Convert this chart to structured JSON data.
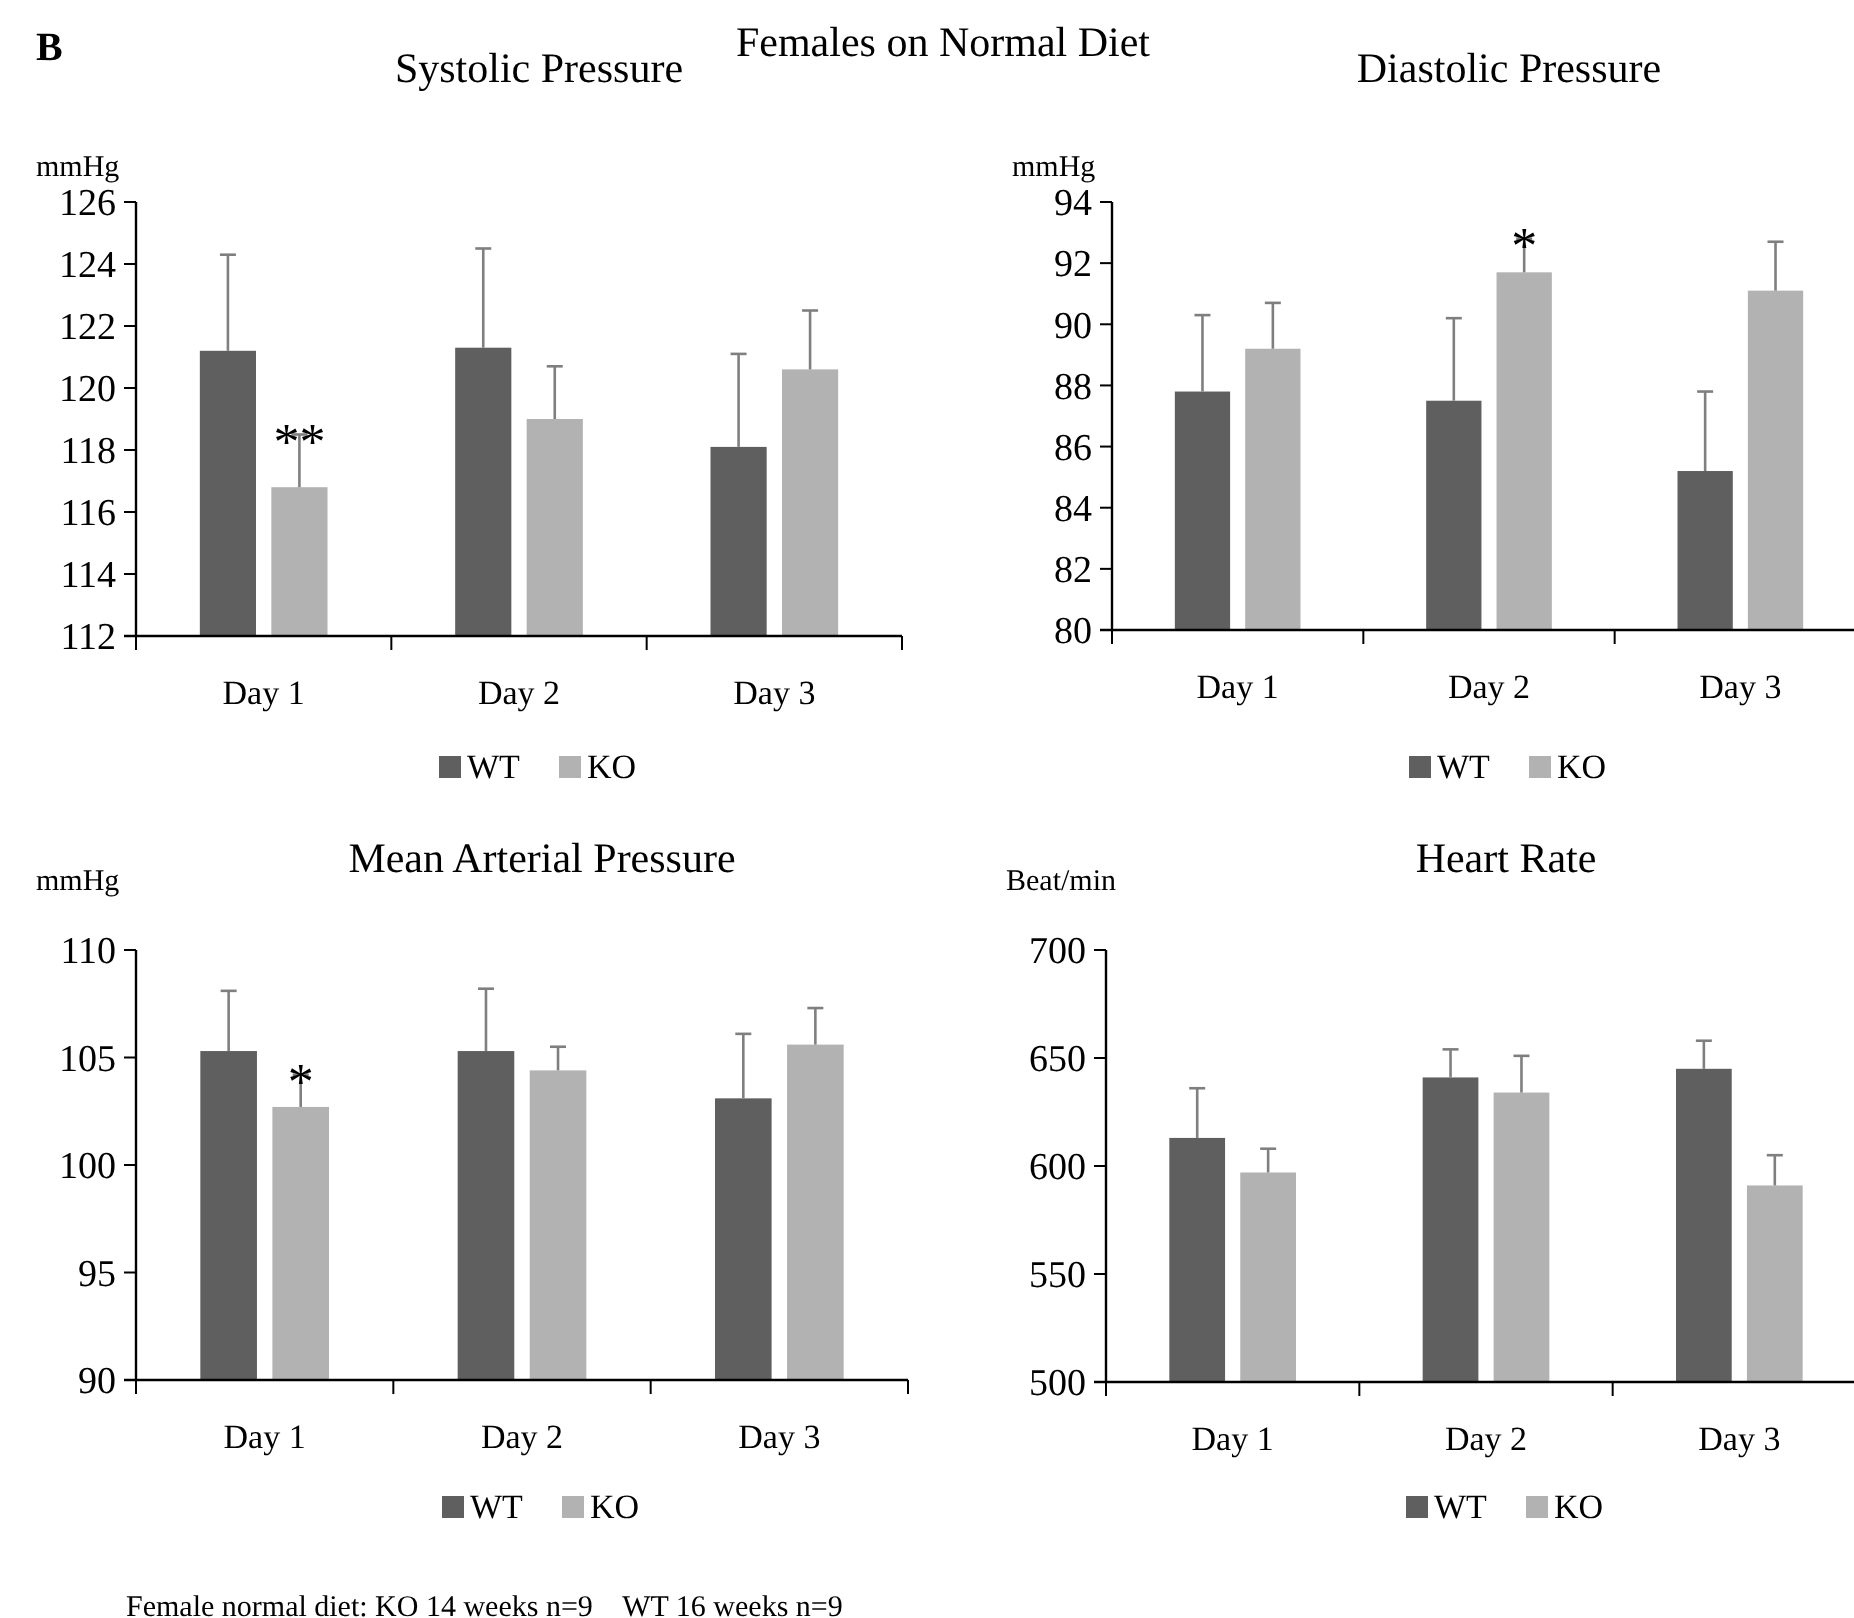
{
  "chart_data": [
    {
      "type": "bar",
      "title": "Systolic Pressure",
      "ylabel": "mmHg",
      "categories": [
        "Day 1",
        "Day 2",
        "Day 3"
      ],
      "legend": "bottom",
      "ylim": [
        112,
        126
      ],
      "yticks": [
        112,
        114,
        116,
        118,
        120,
        122,
        124,
        126
      ],
      "series": [
        {
          "name": "WT",
          "color": "#5f5f5f",
          "values": [
            121.2,
            121.3,
            118.1
          ],
          "errors": [
            [
              121.2,
              124.3
            ],
            [
              121.3,
              124.5
            ],
            [
              118.1,
              121.1
            ]
          ]
        },
        {
          "name": "KO",
          "color": "#b2b2b2",
          "values": [
            116.8,
            119.0,
            120.6
          ],
          "errors": [
            [
              116.8,
              118.5
            ],
            [
              119.0,
              120.7
            ],
            [
              120.6,
              122.5
            ]
          ]
        }
      ],
      "annotations": [
        "B",
        "Females on Normal Diet",
        {
          "text": "**",
          "x": "Day 1",
          "y": 116.8
        }
      ]
    },
    {
      "type": "bar",
      "title": "Diastolic Pressure",
      "ylabel": "mmHg",
      "categories": [
        "Day 1",
        "Day 2",
        "Day 3"
      ],
      "legend": "bottom",
      "ylim": [
        80,
        94
      ],
      "yticks": [
        80,
        82,
        84,
        86,
        88,
        90,
        92,
        94
      ],
      "series": [
        {
          "name": "WT",
          "color": "#5f5f5f",
          "values": [
            87.8,
            87.5,
            85.2
          ],
          "errors": [
            [
              87.8,
              90.3
            ],
            [
              87.5,
              90.2
            ],
            [
              85.2,
              87.8
            ]
          ]
        },
        {
          "name": "KO",
          "color": "#b2b2b2",
          "values": [
            89.2,
            91.7,
            91.1
          ],
          "errors": [
            [
              89.2,
              90.7
            ],
            [
              91.7,
              92.8
            ],
            [
              91.1,
              92.7
            ]
          ]
        }
      ],
      "annotations": [
        {
          "text": "*",
          "x": "Day 2",
          "y": 91.7
        }
      ]
    },
    {
      "type": "bar",
      "title": "Mean Arterial Pressure",
      "ylabel": "mmHg",
      "categories": [
        "Day 1",
        "Day 2",
        "Day 3"
      ],
      "legend": "bottom",
      "ylim": [
        90,
        110
      ],
      "yticks": [
        90,
        95,
        100,
        105,
        110
      ],
      "series": [
        {
          "name": "WT",
          "color": "#5f5f5f",
          "values": [
            105.3,
            105.3,
            103.1
          ],
          "errors": [
            [
              105.3,
              108.1
            ],
            [
              105.3,
              108.2
            ],
            [
              103.1,
              106.1
            ]
          ]
        },
        {
          "name": "KO",
          "color": "#b2b2b2",
          "values": [
            102.7,
            104.4,
            105.6
          ],
          "errors": [
            [
              102.7,
              104.2
            ],
            [
              104.4,
              105.5
            ],
            [
              105.6,
              107.3
            ]
          ]
        }
      ],
      "annotations": [
        {
          "text": "*",
          "x": "Day 1",
          "y": 102.7
        },
        "Female normal diet: KO 14 weeks n=9    WT 16 weeks n=9"
      ]
    },
    {
      "type": "bar",
      "title": "Heart Rate",
      "ylabel": "Beat/min",
      "categories": [
        "Day 1",
        "Day 2",
        "Day 3"
      ],
      "legend": "bottom",
      "ylim": [
        500,
        700
      ],
      "yticks": [
        500,
        550,
        600,
        650,
        700
      ],
      "series": [
        {
          "name": "WT",
          "color": "#5f5f5f",
          "values": [
            613,
            641,
            645
          ],
          "errors": [
            [
              613,
              636
            ],
            [
              641,
              654
            ],
            [
              645,
              658
            ]
          ]
        },
        {
          "name": "KO",
          "color": "#b2b2b2",
          "values": [
            597,
            634,
            591
          ],
          "errors": [
            [
              597,
              608
            ],
            [
              634,
              651
            ],
            [
              591,
              605
            ]
          ]
        }
      ]
    }
  ]
}
